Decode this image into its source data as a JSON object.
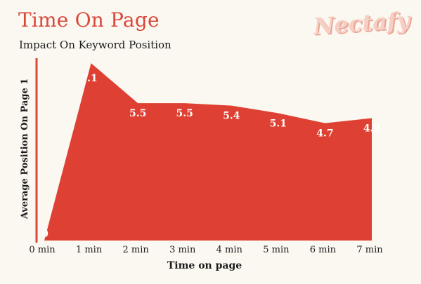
{
  "header": {
    "title": "Time On Page",
    "subtitle": "Impact On Keyword Position",
    "logo": "Nectafy"
  },
  "chart_data": {
    "type": "area",
    "title": "Time On Page",
    "subtitle": "Impact On Keyword Position",
    "xlabel": "Time on page",
    "ylabel": "Average Position On Page 1",
    "categories": [
      "0 min",
      "1 min",
      "2 min",
      "3 min",
      "4 min",
      "5 min",
      "6 min",
      "7 min"
    ],
    "values": [
      0,
      7.1,
      5.5,
      5.5,
      5.4,
      5.1,
      4.7,
      4.9
    ],
    "ylim": [
      0,
      7.3
    ],
    "grid": false,
    "legend": "none",
    "colors": {
      "area": "#de4133",
      "axis": "#d9493b",
      "label": "#ffffff",
      "title": "#d9493b"
    }
  }
}
